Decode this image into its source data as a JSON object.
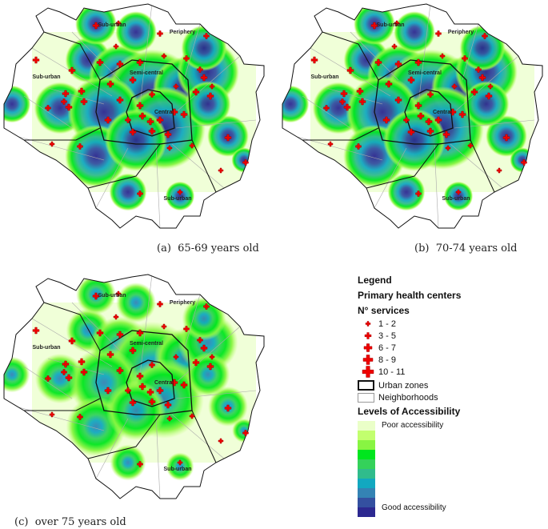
{
  "panels": [
    {
      "id": "a",
      "caption": "(a)  65-69 years old",
      "variant": "dense"
    },
    {
      "id": "b",
      "caption": "(b)  70-74 years old",
      "variant": "dense"
    },
    {
      "id": "c",
      "caption": "(c)  over 75 years old",
      "variant": "sparse"
    }
  ],
  "zone_labels": [
    "Sub-urban",
    "Periphery",
    "Sub-urban",
    "Semi-central",
    "Central",
    "Sub-urban"
  ],
  "legend": {
    "title": "Legend",
    "subtitle": "Primary health centers",
    "services_title": "N° services",
    "service_classes": [
      "1 - 2",
      "3 - 5",
      "6 - 7",
      "8 - 9",
      "10 - 11"
    ],
    "urban_zones": "Urban zones",
    "neighborhoods": "Neighborhoods",
    "accessibility_title": "Levels of Accessibility",
    "poor": "Poor accessibility",
    "good": "Good accessibility",
    "ramp_colors": [
      "#eaffc8",
      "#c2ff6e",
      "#88f542",
      "#00e61e",
      "#34d25a",
      "#30bc8c",
      "#12a8c0",
      "#3483b4",
      "#3450a0",
      "#2c2890"
    ]
  },
  "colors": {
    "marker": "#ee0000",
    "zone_line": "#111111",
    "neighborhood_line": "#aaaaaa"
  }
}
